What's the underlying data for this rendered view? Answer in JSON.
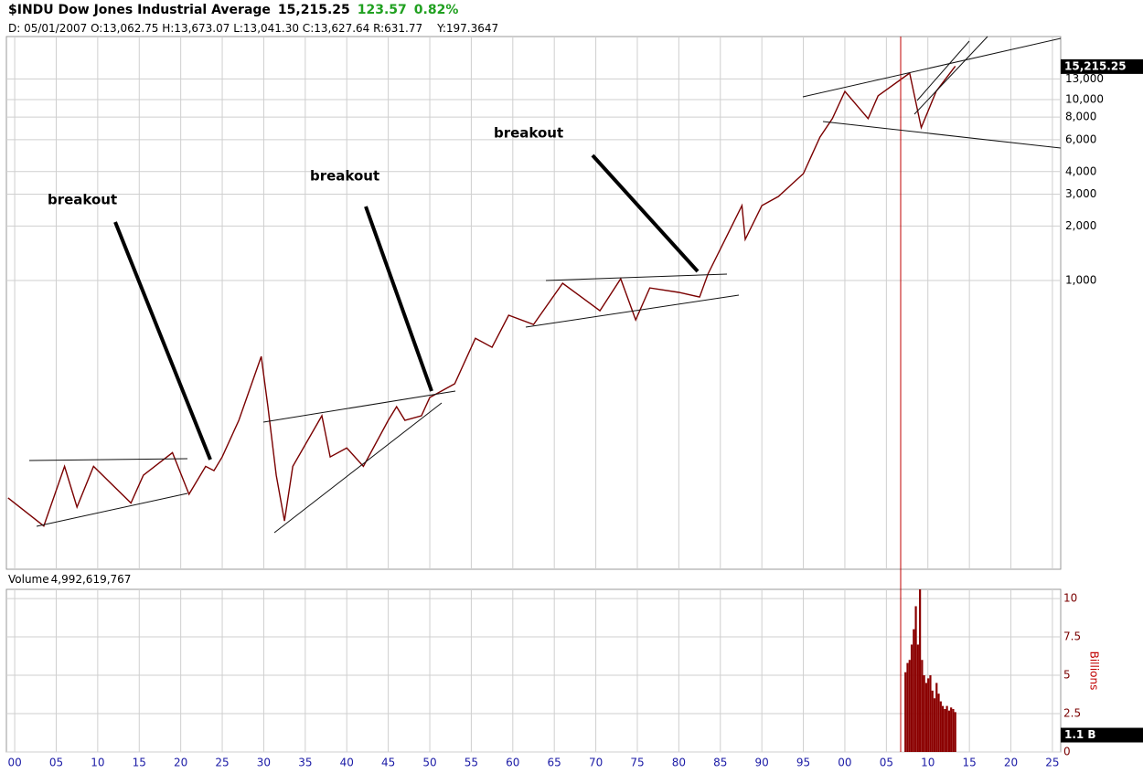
{
  "header": {
    "symbol": "$INDU Dow Jones Industrial Average",
    "change": "123.57",
    "change_pct": "0.82%",
    "info": "D: 05/01/2007 O:13,062.75 H:13,673.07 L:13,041.30 C:13,627.64 R:631.77",
    "y_readout": "Y:197.3647",
    "volume_label": "Volume",
    "volume_total": "4,992,619,767"
  },
  "chart_data": [
    {
      "type": "line",
      "log_scale": true,
      "color": "#7a0000",
      "x": [
        1899.2,
        1903.5,
        1906,
        1907.5,
        1909.5,
        1914,
        1915.5,
        1919,
        1921,
        1923,
        1924,
        1925,
        1927,
        1929.7,
        1930.5,
        1931.5,
        1932.5,
        1933.5,
        1937,
        1938,
        1940,
        1942,
        1945,
        1946,
        1947,
        1949,
        1950,
        1953,
        1955.5,
        1957.5,
        1959.5,
        1962.5,
        1966,
        1970.5,
        1973,
        1974.8,
        1976.5,
        1980,
        1982.5,
        1983.5,
        1987.6,
        1988,
        1990,
        1992,
        1995,
        1997,
        1998.5,
        2000,
        2002.8,
        2004,
        2007.8,
        2009.2,
        2011,
        2013.3
      ],
      "values": [
        63,
        44,
        94,
        56,
        94,
        59,
        84,
        112,
        66,
        94,
        89,
        106,
        169,
        381,
        201,
        84,
        47,
        94,
        179,
        106,
        119,
        94,
        169,
        201,
        169,
        179,
        226,
        269,
        480,
        428,
        643,
        572,
        966,
        681,
        1023,
        606,
        911,
        860,
        811,
        1085,
        2595,
        1688,
        2595,
        2916,
        3900,
        6200,
        7850,
        11100,
        7850,
        10500,
        14000,
        7000,
        11100,
        15300
      ],
      "xlim": [
        1899,
        2026
      ],
      "ylim": [
        25.4,
        22300
      ],
      "xticks": [
        {
          "value": 1900,
          "label": "00"
        },
        {
          "value": 1905,
          "label": "05"
        },
        {
          "value": 1910,
          "label": "10"
        },
        {
          "value": 1915,
          "label": "15"
        },
        {
          "value": 1920,
          "label": "20"
        },
        {
          "value": 1925,
          "label": "25"
        },
        {
          "value": 1930,
          "label": "30"
        },
        {
          "value": 1935,
          "label": "35"
        },
        {
          "value": 1940,
          "label": "40"
        },
        {
          "value": 1945,
          "label": "45"
        },
        {
          "value": 1950,
          "label": "50"
        },
        {
          "value": 1955,
          "label": "55"
        },
        {
          "value": 1960,
          "label": "60"
        },
        {
          "value": 1965,
          "label": "65"
        },
        {
          "value": 1970,
          "label": "70"
        },
        {
          "value": 1975,
          "label": "75"
        },
        {
          "value": 1980,
          "label": "80"
        },
        {
          "value": 1985,
          "label": "85"
        },
        {
          "value": 1990,
          "label": "90"
        },
        {
          "value": 1995,
          "label": "95"
        },
        {
          "value": 2000,
          "label": "00"
        },
        {
          "value": 2005,
          "label": "05"
        },
        {
          "value": 2010,
          "label": "10"
        },
        {
          "value": 2015,
          "label": "15"
        },
        {
          "value": 2020,
          "label": "20"
        },
        {
          "value": 2025,
          "label": "25"
        }
      ],
      "yticks": [
        {
          "value": 1000,
          "label": "1,000"
        },
        {
          "value": 2000,
          "label": "2,000"
        },
        {
          "value": 3000,
          "label": "3,000"
        },
        {
          "value": 4000,
          "label": "4,000"
        },
        {
          "value": 6000,
          "label": "6,000"
        },
        {
          "value": 8000,
          "label": "8,000"
        },
        {
          "value": 10000,
          "label": "10,000"
        },
        {
          "value": 13000,
          "label": "13,000"
        }
      ],
      "last": {
        "value": 15215.25,
        "label": "15,215.25"
      },
      "annotations": [
        "breakout",
        "breakout",
        "breakout"
      ],
      "grid": true
    },
    {
      "type": "bar",
      "color": "#8b0000",
      "ylabel": "Billions",
      "x": [
        2007.3,
        2007.55,
        2007.8,
        2008.05,
        2008.3,
        2008.55,
        2008.8,
        2009.05,
        2009.3,
        2009.55,
        2009.8,
        2010.05,
        2010.3,
        2010.55,
        2010.8,
        2011.05,
        2011.3,
        2011.55,
        2011.8,
        2012.05,
        2012.3,
        2012.55,
        2012.8,
        2013.05,
        2013.3
      ],
      "values": [
        5.2,
        5.8,
        6,
        7,
        8,
        9.5,
        7,
        10.6,
        6,
        5,
        4.5,
        4.8,
        5,
        4,
        3.5,
        4.5,
        3.8,
        3.3,
        3,
        2.8,
        3,
        2.7,
        2.9,
        2.8,
        2.6
      ],
      "ylim": [
        0,
        10.6
      ],
      "yticks": [
        0,
        2.5,
        5,
        7.5,
        10
      ],
      "last": {
        "value": 1.1,
        "label": "1.1 B"
      }
    }
  ]
}
